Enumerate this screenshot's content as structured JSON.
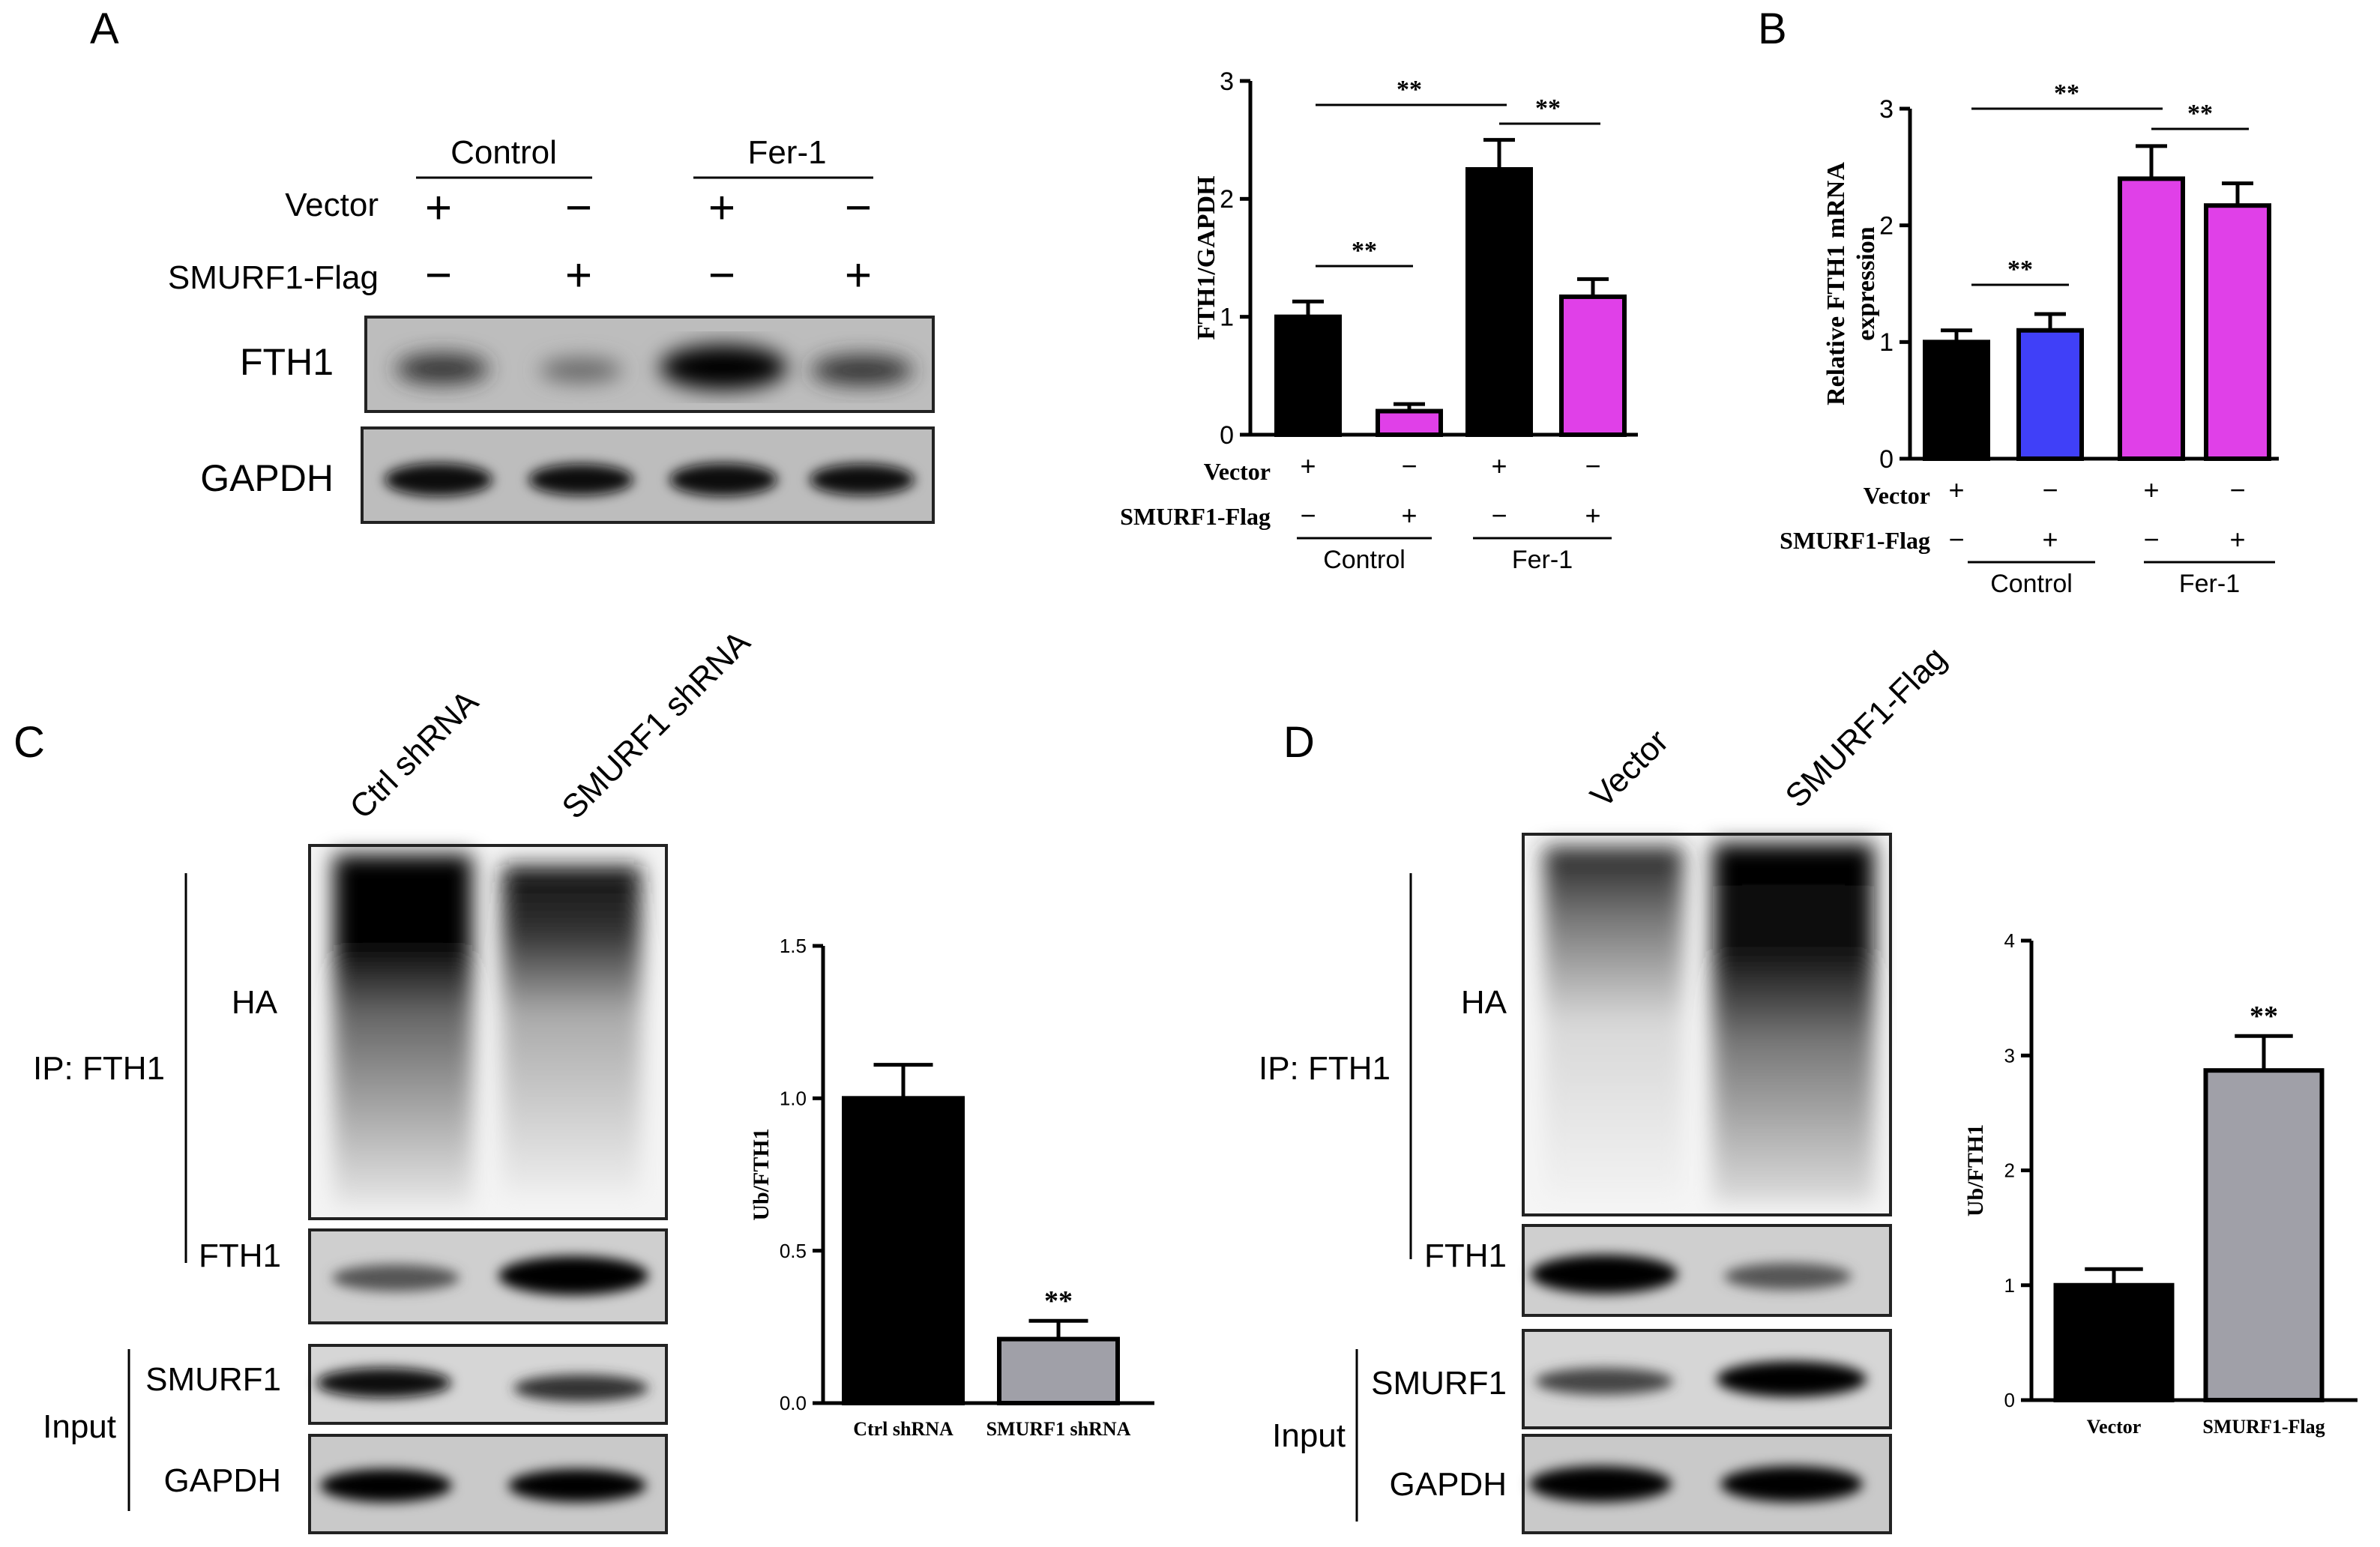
{
  "panels": {
    "A": "A",
    "B": "B",
    "C": "C",
    "D": "D"
  },
  "panel_a": {
    "groups": [
      "Control",
      "Fer-1"
    ],
    "row_labels": [
      "Vector",
      "SMURF1-Flag"
    ],
    "vector_signs": [
      "+",
      "−",
      "+",
      "−"
    ],
    "flag_signs": [
      "−",
      "+",
      "−",
      "+"
    ],
    "blots": [
      "FTH1",
      "GAPDH"
    ]
  },
  "panel_c": {
    "lanes": [
      "Ctrl shRNA",
      "SMURF1 shRNA"
    ],
    "ip_label": "IP: FTH1",
    "input_label": "Input",
    "blots": [
      "HA",
      "FTH1",
      "SMURF1",
      "GAPDH"
    ]
  },
  "panel_d": {
    "lanes": [
      "Vector",
      "SMURF1-Flag"
    ],
    "ip_label": "IP: FTH1",
    "input_label": "Input",
    "blots": [
      "HA",
      "FTH1",
      "SMURF1",
      "GAPDH"
    ]
  },
  "colors": {
    "black": "#000000",
    "magenta": "#e040e8",
    "blue": "#4040f8",
    "gray": "#a0a0a8"
  },
  "chart_data": [
    {
      "id": "A-chart",
      "type": "bar",
      "ylabel": "FTH1/GAPDH",
      "ylim": [
        0,
        3
      ],
      "yticks": [
        "0",
        "1",
        "2",
        "3"
      ],
      "values": [
        1.0,
        0.2,
        2.25,
        1.17
      ],
      "errors": [
        0.13,
        0.06,
        0.25,
        0.15
      ],
      "colors": [
        "black",
        "magenta",
        "black",
        "magenta"
      ],
      "row_labels": [
        "Vector",
        "SMURF1-Flag"
      ],
      "vector_signs": [
        "+",
        "−",
        "+",
        "−"
      ],
      "flag_signs": [
        "−",
        "+",
        "−",
        "+"
      ],
      "groups": [
        "Control",
        "Fer-1"
      ],
      "significance": [
        "**",
        "**",
        "**"
      ]
    },
    {
      "id": "B-chart",
      "type": "bar",
      "ylabel": "Relative FTH1 mRNA expression",
      "ylabel_lines": [
        "Relative FTH1 mRNA",
        "expression"
      ],
      "ylim": [
        0,
        3
      ],
      "yticks": [
        "0",
        "1",
        "2",
        "3"
      ],
      "values": [
        1.0,
        1.1,
        2.4,
        2.17
      ],
      "errors": [
        0.1,
        0.14,
        0.28,
        0.19
      ],
      "colors": [
        "black",
        "blue",
        "magenta",
        "magenta"
      ],
      "row_labels": [
        "Vector",
        "SMURF1-Flag"
      ],
      "vector_signs": [
        "+",
        "−",
        "+",
        "−"
      ],
      "flag_signs": [
        "−",
        "+",
        "−",
        "+"
      ],
      "groups": [
        "Control",
        "Fer-1"
      ],
      "significance": [
        "**",
        "**",
        "**"
      ]
    },
    {
      "id": "C-chart",
      "type": "bar",
      "ylabel": "Ub/FTH1",
      "ylim": [
        0,
        1.5
      ],
      "yticks": [
        "0.0",
        "0.5",
        "1.0",
        "1.5"
      ],
      "categories": [
        "Ctrl shRNA",
        "SMURF1 shRNA"
      ],
      "values": [
        1.0,
        0.21
      ],
      "errors": [
        0.11,
        0.06
      ],
      "colors": [
        "black",
        "gray"
      ],
      "significance": [
        "**"
      ]
    },
    {
      "id": "D-chart",
      "type": "bar",
      "ylabel": "Ub/FTH1",
      "ylim": [
        0,
        4
      ],
      "yticks": [
        "0",
        "1",
        "2",
        "3",
        "4"
      ],
      "categories": [
        "Vector",
        "SMURF1-Flag"
      ],
      "values": [
        1.0,
        2.87
      ],
      "errors": [
        0.14,
        0.3
      ],
      "colors": [
        "black",
        "gray"
      ],
      "significance": [
        "**"
      ]
    }
  ]
}
